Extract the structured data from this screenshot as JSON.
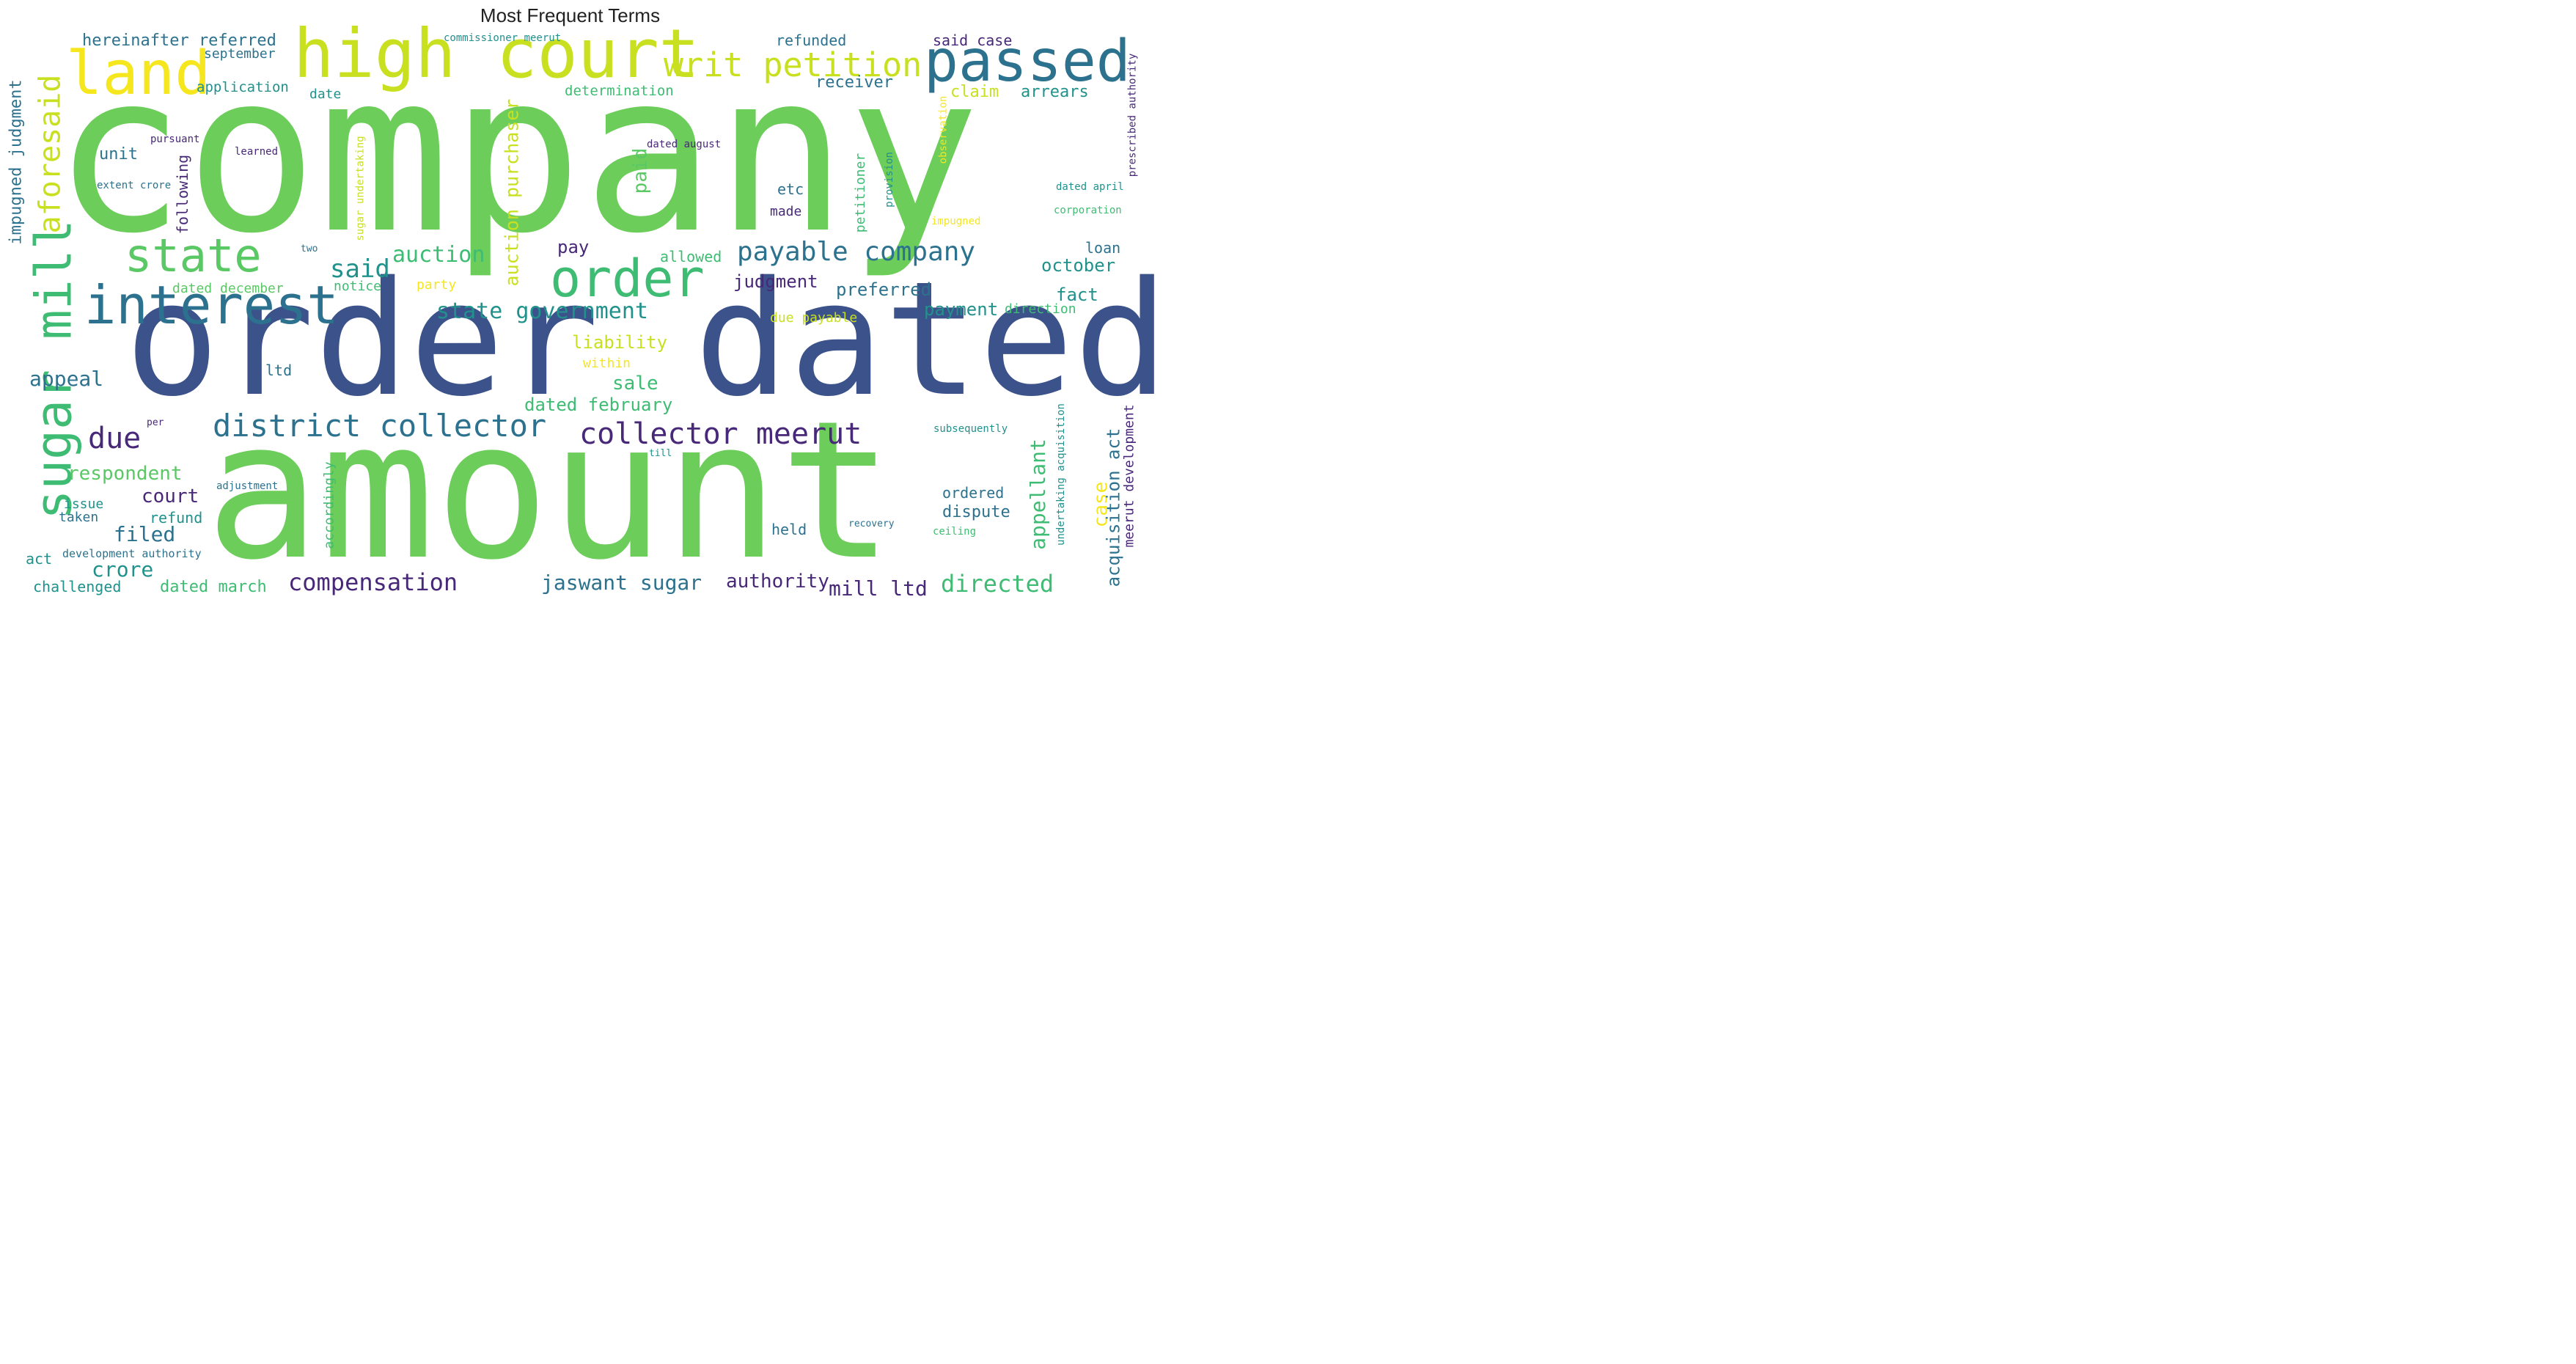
{
  "title": "Most Frequent Terms",
  "colors": {
    "green": "#6ccd5a",
    "green2": "#5ac864",
    "lime": "#c8e020",
    "yellow": "#f5e61e",
    "navy": "#3b528b",
    "teal": "#2c728e",
    "teal2": "#21918c",
    "purple": "#482878",
    "aqua": "#3fbc73"
  },
  "words": [
    {
      "text": "company"
    },
    {
      "text": "amount"
    },
    {
      "text": "order dated"
    },
    {
      "text": "high court"
    },
    {
      "text": "passed"
    },
    {
      "text": "land"
    },
    {
      "text": "interest"
    },
    {
      "text": "state"
    },
    {
      "text": "order"
    },
    {
      "text": "sugar mill"
    },
    {
      "text": "aforesaid"
    },
    {
      "text": "writ petition"
    },
    {
      "text": "district collector"
    },
    {
      "text": "collector meerut"
    },
    {
      "text": "payable company"
    },
    {
      "text": "state government"
    },
    {
      "text": "auction"
    },
    {
      "text": "auction purchaser"
    },
    {
      "text": "said"
    },
    {
      "text": "due"
    },
    {
      "text": "impugned judgment"
    },
    {
      "text": "hereinafter referred"
    },
    {
      "text": "september"
    },
    {
      "text": "application"
    },
    {
      "text": "commissioner meerut"
    },
    {
      "text": "determination"
    },
    {
      "text": "refunded"
    },
    {
      "text": "said case"
    },
    {
      "text": "receiver"
    },
    {
      "text": "claim"
    },
    {
      "text": "arrears"
    },
    {
      "text": "date"
    },
    {
      "text": "unit"
    },
    {
      "text": "pursuant"
    },
    {
      "text": "learned"
    },
    {
      "text": "extent crore"
    },
    {
      "text": "following"
    },
    {
      "text": "sugar undertaking"
    },
    {
      "text": "paid"
    },
    {
      "text": "dated august"
    },
    {
      "text": "etc"
    },
    {
      "text": "made"
    },
    {
      "text": "petitioner"
    },
    {
      "text": "provision"
    },
    {
      "text": "observation"
    },
    {
      "text": "prescribed authority"
    },
    {
      "text": "dated april"
    },
    {
      "text": "impugned"
    },
    {
      "text": "corporation"
    },
    {
      "text": "two"
    },
    {
      "text": "pay"
    },
    {
      "text": "allowed"
    },
    {
      "text": "loan"
    },
    {
      "text": "october"
    },
    {
      "text": "dated december"
    },
    {
      "text": "notice"
    },
    {
      "text": "party"
    },
    {
      "text": "judgment"
    },
    {
      "text": "preferred"
    },
    {
      "text": "fact"
    },
    {
      "text": "payment"
    },
    {
      "text": "direction"
    },
    {
      "text": "due payable"
    },
    {
      "text": "liability"
    },
    {
      "text": "within"
    },
    {
      "text": "appeal"
    },
    {
      "text": "ltd"
    },
    {
      "text": "sale"
    },
    {
      "text": "dated february"
    },
    {
      "text": "per"
    },
    {
      "text": "subsequently"
    },
    {
      "text": "till"
    },
    {
      "text": "respondent"
    },
    {
      "text": "adjustment"
    },
    {
      "text": "accordingly"
    },
    {
      "text": "appellant"
    },
    {
      "text": "undertaking acquisition"
    },
    {
      "text": "case"
    },
    {
      "text": "acquisition act"
    },
    {
      "text": "meerut development"
    },
    {
      "text": "court"
    },
    {
      "text": "issue"
    },
    {
      "text": "refund"
    },
    {
      "text": "taken"
    },
    {
      "text": "filed"
    },
    {
      "text": "ordered"
    },
    {
      "text": "dispute"
    },
    {
      "text": "held"
    },
    {
      "text": "recovery"
    },
    {
      "text": "ceiling"
    },
    {
      "text": "development authority"
    },
    {
      "text": "act"
    },
    {
      "text": "crore"
    },
    {
      "text": "challenged"
    },
    {
      "text": "dated march"
    },
    {
      "text": "compensation"
    },
    {
      "text": "jaswant sugar"
    },
    {
      "text": "authority"
    },
    {
      "text": "mill ltd"
    },
    {
      "text": "directed"
    }
  ]
}
